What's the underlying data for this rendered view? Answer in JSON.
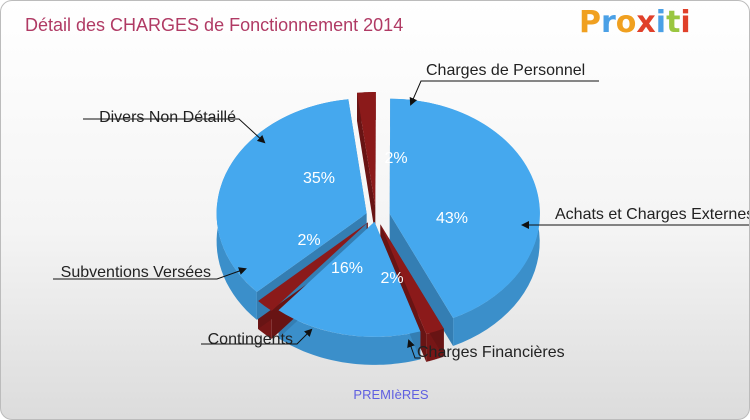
{
  "title": "Détail des CHARGES de Fonctionnement 2014",
  "logo": {
    "text": "Proxiti",
    "letters": [
      "P",
      "r",
      "o",
      "x",
      "i",
      "t",
      "i"
    ],
    "colors": [
      "#f0a020",
      "#4aa0e6",
      "#f0a020",
      "#e0402a",
      "#4aa0e6",
      "#9ac640",
      "#e0402a"
    ]
  },
  "colors": {
    "blue": "#45a8ee",
    "dark_red": "#8b1a1a",
    "title": "#b03a64",
    "xlabel": "#6060e0"
  },
  "chart_data": {
    "type": "pie",
    "style": "3d-exploded",
    "title": "Détail des CHARGES de Fonctionnement 2014",
    "xlabel": "PREMIèRES",
    "slices": [
      {
        "label": "Charges de Personnel",
        "value": 2,
        "value_label": "2%",
        "color": "#8b1a1a"
      },
      {
        "label": "Achats et Charges Externes",
        "value": 43,
        "value_label": "43%",
        "color": "#45a8ee"
      },
      {
        "label": "Charges Financières",
        "value": 2,
        "value_label": "2%",
        "color": "#8b1a1a"
      },
      {
        "label": "Contingents",
        "value": 16,
        "value_label": "16%",
        "color": "#45a8ee"
      },
      {
        "label": "Subventions Versées",
        "value": 2,
        "value_label": "2%",
        "color": "#8b1a1a"
      },
      {
        "label": "Divers Non Détaillé",
        "value": 35,
        "value_label": "35%",
        "color": "#45a8ee"
      }
    ]
  }
}
